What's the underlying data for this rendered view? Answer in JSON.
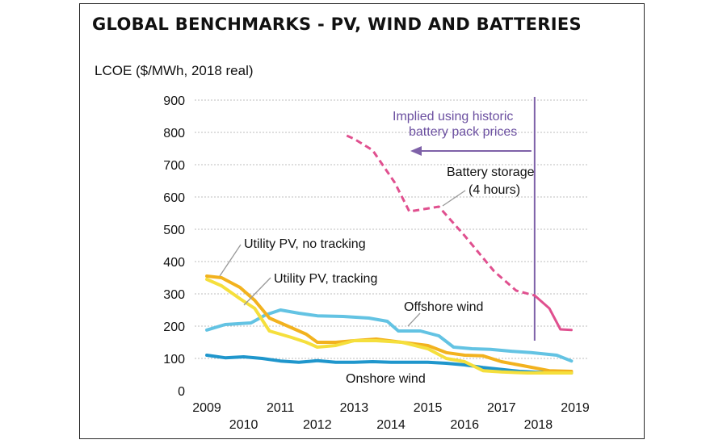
{
  "chart_data": {
    "type": "line",
    "title": "GLOBAL BENCHMARKS - PV, WIND AND BATTERIES",
    "ylabel": "LCOE ($/MWh, 2018 real)",
    "xlabel": "",
    "ylim": [
      0,
      900
    ],
    "yticks": [
      0,
      100,
      200,
      300,
      400,
      500,
      600,
      700,
      800,
      900
    ],
    "xlim": [
      2009,
      2019
    ],
    "xticks": [
      {
        "label": "2009",
        "row": "upper"
      },
      {
        "label": "2010",
        "row": "lower"
      },
      {
        "label": "2011",
        "row": "upper"
      },
      {
        "label": "2012",
        "row": "lower"
      },
      {
        "label": "2013",
        "row": "upper"
      },
      {
        "label": "2014",
        "row": "lower"
      },
      {
        "label": "2015",
        "row": "upper"
      },
      {
        "label": "2016",
        "row": "lower"
      },
      {
        "label": "2017",
        "row": "upper"
      },
      {
        "label": "2018",
        "row": "lower"
      },
      {
        "label": "2019",
        "row": "upper"
      }
    ],
    "grid": "horizontal dotted",
    "legend": "inline annotations",
    "series": [
      {
        "key": "battery",
        "name": "Battery storage (4 hours)",
        "color": "#e0508f",
        "x": [
          2012.8,
          2013.0,
          2013.5,
          2014.1,
          2014.5,
          2015.3,
          2016.0,
          2016.8,
          2017.4,
          2017.9,
          2018.3,
          2018.6,
          2018.9
        ],
        "values": [
          790,
          780,
          745,
          645,
          555,
          570,
          480,
          370,
          310,
          295,
          255,
          190,
          188
        ],
        "dashed_until": 2017.9
      },
      {
        "key": "pv_no_tracking",
        "name": "Utility PV, no tracking",
        "color": "#f2b21e",
        "x": [
          2009.0,
          2009.4,
          2009.9,
          2010.3,
          2010.7,
          2011.3,
          2011.7,
          2012.0,
          2012.5,
          2013.0,
          2013.6,
          2014.3,
          2015.0,
          2015.5,
          2016.0,
          2016.5,
          2017.0,
          2017.7,
          2018.3,
          2018.9
        ],
        "values": [
          355,
          350,
          320,
          280,
          225,
          195,
          175,
          150,
          150,
          155,
          160,
          150,
          140,
          118,
          110,
          108,
          90,
          75,
          62,
          60
        ]
      },
      {
        "key": "pv_tracking",
        "name": "Utility PV, tracking",
        "color": "#f5df3c",
        "x": [
          2009.0,
          2009.4,
          2009.9,
          2010.3,
          2010.7,
          2011.3,
          2011.7,
          2012.0,
          2012.5,
          2013.0,
          2013.6,
          2014.3,
          2015.0,
          2015.5,
          2016.0,
          2016.5,
          2017.0,
          2017.7,
          2018.3,
          2018.9
        ],
        "values": [
          345,
          325,
          285,
          255,
          185,
          165,
          150,
          135,
          140,
          155,
          155,
          150,
          130,
          100,
          90,
          62,
          58,
          55,
          55,
          55
        ]
      },
      {
        "key": "offshore",
        "name": "Offshore wind",
        "color": "#63c3e3",
        "x": [
          2009.0,
          2009.5,
          2010.2,
          2010.6,
          2011.0,
          2011.5,
          2012.0,
          2012.7,
          2013.4,
          2013.9,
          2014.2,
          2014.8,
          2015.3,
          2015.7,
          2016.2,
          2016.7,
          2017.3,
          2017.8,
          2018.5,
          2018.9
        ],
        "values": [
          188,
          205,
          210,
          235,
          250,
          240,
          232,
          230,
          225,
          215,
          185,
          185,
          170,
          135,
          130,
          128,
          122,
          118,
          110,
          92
        ]
      },
      {
        "key": "onshore",
        "name": "Onshore wind",
        "color": "#1f96cc",
        "x": [
          2009.0,
          2009.5,
          2010.0,
          2010.5,
          2011.0,
          2011.5,
          2012.0,
          2012.5,
          2013.0,
          2013.5,
          2014.0,
          2014.5,
          2015.0,
          2015.5,
          2016.0,
          2016.5,
          2017.0,
          2017.5,
          2018.0,
          2018.5,
          2018.9
        ],
        "values": [
          110,
          102,
          105,
          100,
          92,
          88,
          93,
          88,
          88,
          90,
          88,
          88,
          88,
          85,
          80,
          72,
          66,
          60,
          57,
          55,
          55
        ]
      }
    ],
    "annotations": {
      "implied": [
        "Implied using historic",
        "battery pack prices"
      ],
      "implied_line_x": 2017.9,
      "battery": [
        "Battery storage",
        "(4 hours)"
      ],
      "pv_no_tracking": "Utility PV, no tracking",
      "pv_tracking": "Utility PV, tracking",
      "offshore": "Offshore wind",
      "onshore": "Onshore wind"
    },
    "colors": {
      "purple": "#7e61a8",
      "grid": "#bdbdbd",
      "leader": "#999999"
    }
  }
}
